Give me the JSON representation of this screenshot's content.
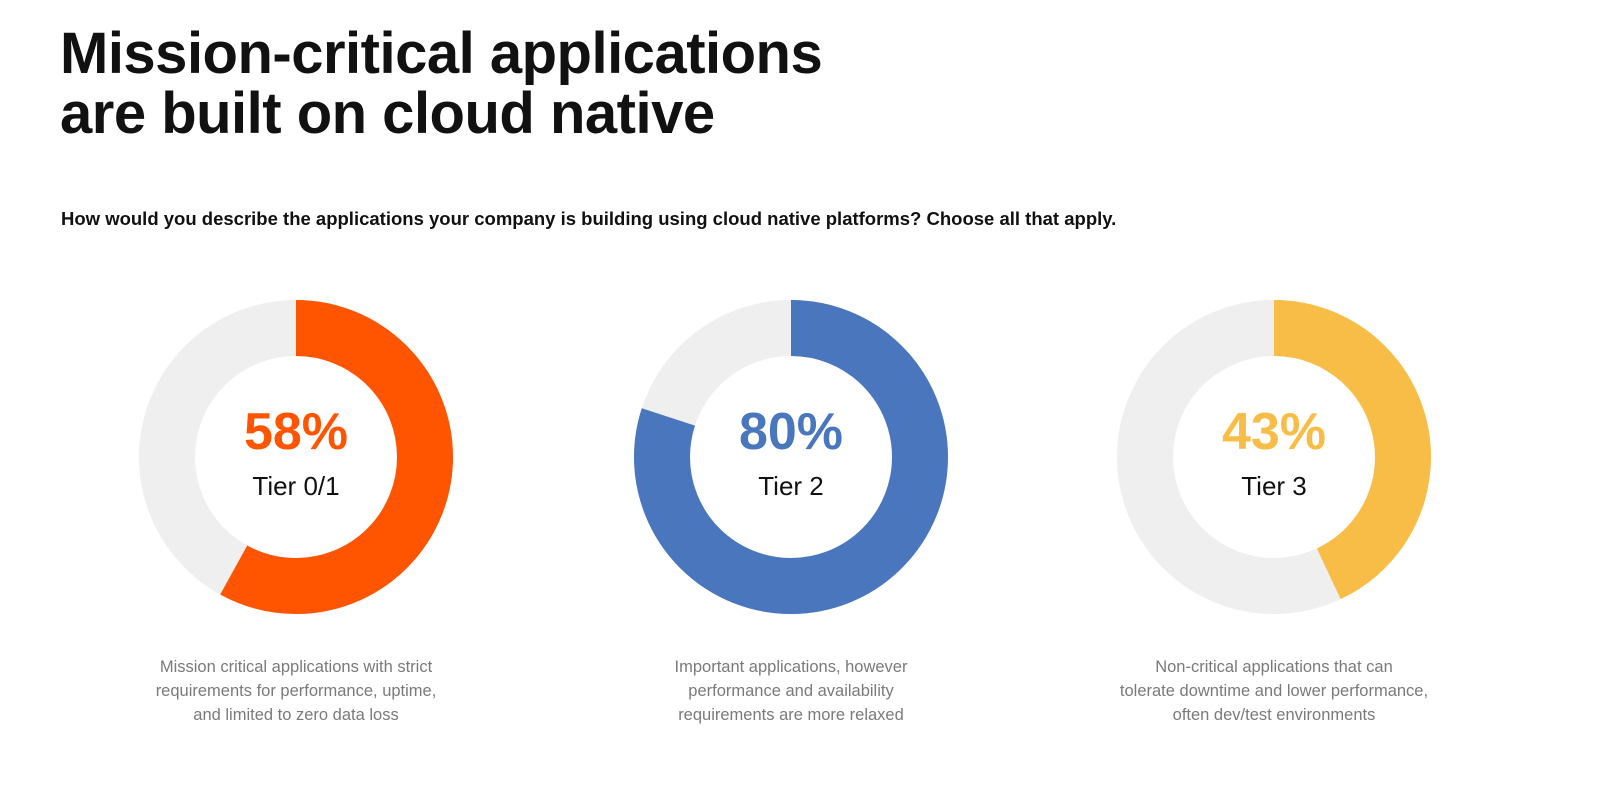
{
  "title": {
    "line1": "Mission-critical applications",
    "line2": "are built on cloud native"
  },
  "question": "How would you describe the applications your company is building using cloud native platforms? Choose all that apply.",
  "chart_data": [
    {
      "type": "pie",
      "variant": "donut",
      "value": 58,
      "value_label": "58%",
      "label": "Tier 0/1",
      "color": "#ff5500",
      "track_color": "#efefef",
      "caption": [
        "Mission critical applications with strict",
        "requirements for performance, uptime,",
        "and limited to zero data loss"
      ]
    },
    {
      "type": "pie",
      "variant": "donut",
      "value": 80,
      "value_label": "80%",
      "label": "Tier 2",
      "color": "#4a76bd",
      "track_color": "#efefef",
      "caption": [
        "Important applications, however",
        "performance and availability",
        "requirements are more relaxed"
      ]
    },
    {
      "type": "pie",
      "variant": "donut",
      "value": 43,
      "value_label": "43%",
      "label": "Tier 3",
      "color": "#f8bd46",
      "track_color": "#efefef",
      "caption": [
        "Non-critical applications that can",
        "tolerate downtime and lower performance,",
        "often dev/test environments"
      ]
    }
  ]
}
